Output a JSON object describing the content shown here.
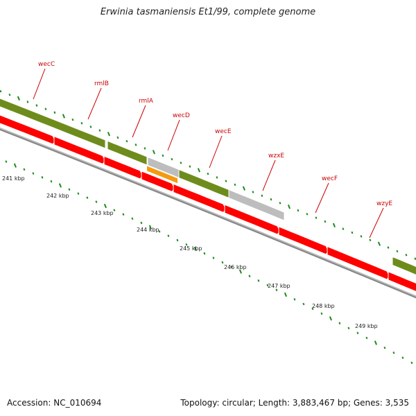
{
  "title": "Erwinia tasmaniensis Et1/99, complete genome",
  "footer": {
    "accession": "Accession: NC_010694",
    "stats": "Topology: circular; Length: 3,883,467 bp; Genes: 3,535"
  },
  "colors": {
    "gene_forward": "#6e8c1c",
    "gene_forward_grey": "#bdbdbd",
    "gene_orange": "#f39a12",
    "gene_reverse": "#ff0000",
    "backbone": "#888888",
    "tick": "#1a8a1a",
    "label": "#cc0000"
  },
  "gene_labels": [
    "wecC",
    "rmlB",
    "rmlA",
    "wecD",
    "wecE",
    "wzxE",
    "wecF",
    "wzyE"
  ],
  "scale_labels": [
    "241 kbp",
    "242 kbp",
    "243 kbp",
    "244 kbp",
    "245 kbp",
    "246 kbp",
    "247 kbp",
    "248 kbp",
    "249 kbp"
  ]
}
